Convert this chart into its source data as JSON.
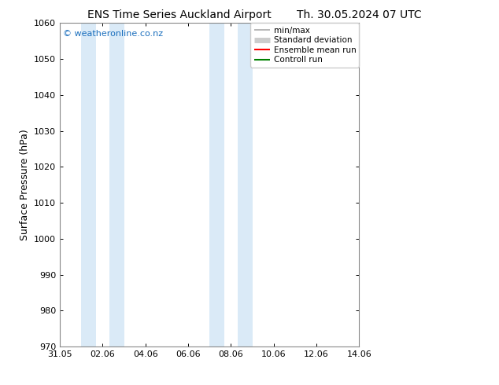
{
  "title_left": "ENS Time Series Auckland Airport",
  "title_right": "Th. 30.05.2024 07 UTC",
  "ylabel": "Surface Pressure (hPa)",
  "ylim": [
    970,
    1060
  ],
  "yticks": [
    970,
    980,
    990,
    1000,
    1010,
    1020,
    1030,
    1040,
    1050,
    1060
  ],
  "xtick_labels": [
    "31.05",
    "02.06",
    "04.06",
    "06.06",
    "08.06",
    "10.06",
    "12.06",
    "14.06"
  ],
  "xtick_positions": [
    0,
    2,
    4,
    6,
    8,
    10,
    12,
    14
  ],
  "xlim": [
    0,
    14
  ],
  "shaded_bands": [
    {
      "x_start": 1.0,
      "x_end": 1.7
    },
    {
      "x_start": 2.3,
      "x_end": 3.0
    },
    {
      "x_start": 7.0,
      "x_end": 7.7
    },
    {
      "x_start": 8.3,
      "x_end": 9.0
    }
  ],
  "band_color": "#daeaf7",
  "background_color": "#ffffff",
  "plot_bg_color": "#ffffff",
  "watermark": "© weatheronline.co.nz",
  "watermark_color": "#1a6ebd",
  "legend_entries": [
    {
      "label": "min/max",
      "color": "#aaaaaa",
      "lw": 1.2
    },
    {
      "label": "Standard deviation",
      "color": "#cccccc",
      "lw": 5
    },
    {
      "label": "Ensemble mean run",
      "color": "#ff0000",
      "lw": 1.5
    },
    {
      "label": "Controll run",
      "color": "#008000",
      "lw": 1.5
    }
  ],
  "title_fontsize": 10,
  "tick_fontsize": 8,
  "ylabel_fontsize": 9,
  "legend_fontsize": 7.5,
  "watermark_fontsize": 8
}
